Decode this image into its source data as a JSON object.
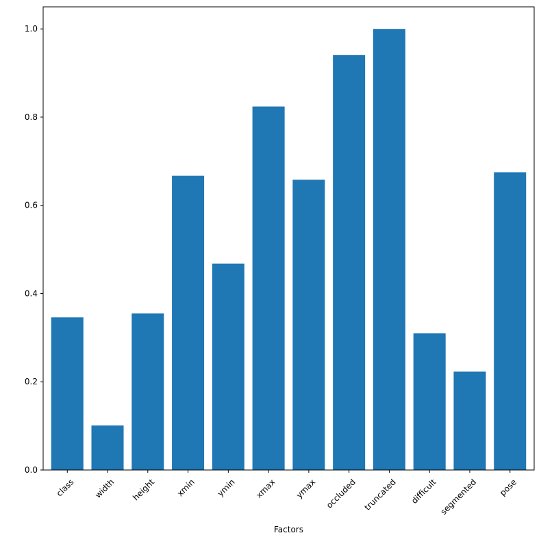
{
  "chart_data": {
    "type": "bar",
    "title": "",
    "xlabel": "Factors",
    "ylabel": "",
    "categories": [
      "class",
      "width",
      "height",
      "xmin",
      "ymin",
      "xmax",
      "ymax",
      "occluded",
      "truncated",
      "difficult",
      "segmented",
      "pose"
    ],
    "values": [
      0.346,
      0.101,
      0.355,
      0.667,
      0.468,
      0.824,
      0.658,
      0.941,
      1.0,
      0.31,
      0.223,
      0.675
    ],
    "ylim": [
      0,
      1.05
    ],
    "yticks": [
      0.0,
      0.2,
      0.4,
      0.6,
      0.8,
      1.0
    ],
    "ytick_labels": [
      "0.0",
      "0.2",
      "0.4",
      "0.6",
      "0.8",
      "1.0"
    ],
    "xtick_rotation": 45,
    "grid": false,
    "legend": "none",
    "bar_color": "#1f77b4"
  }
}
